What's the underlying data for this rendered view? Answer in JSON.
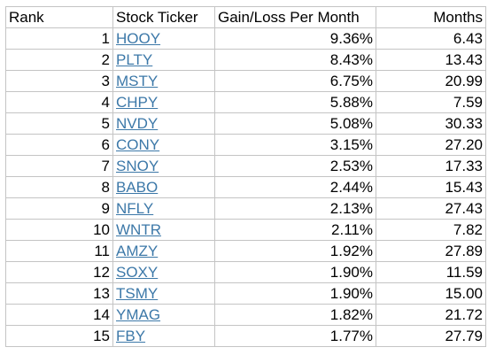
{
  "columns": {
    "rank": "Rank",
    "ticker": "Stock Ticker",
    "gain": "Gain/Loss Per Month",
    "months": "Months"
  },
  "rows": [
    {
      "rank": "1",
      "ticker": "HOOY",
      "gain": "9.36%",
      "months": "6.43"
    },
    {
      "rank": "2",
      "ticker": "PLTY",
      "gain": "8.43%",
      "months": "13.43"
    },
    {
      "rank": "3",
      "ticker": "MSTY",
      "gain": "6.75%",
      "months": "20.99"
    },
    {
      "rank": "4",
      "ticker": "CHPY",
      "gain": "5.88%",
      "months": "7.59"
    },
    {
      "rank": "5",
      "ticker": "NVDY",
      "gain": "5.08%",
      "months": "30.33"
    },
    {
      "rank": "6",
      "ticker": "CONY",
      "gain": "3.15%",
      "months": "27.20"
    },
    {
      "rank": "7",
      "ticker": "SNOY",
      "gain": "2.53%",
      "months": "17.33"
    },
    {
      "rank": "8",
      "ticker": "BABO",
      "gain": "2.44%",
      "months": "15.43"
    },
    {
      "rank": "9",
      "ticker": "NFLY",
      "gain": "2.13%",
      "months": "27.43"
    },
    {
      "rank": "10",
      "ticker": "WNTR",
      "gain": "2.11%",
      "months": "7.82"
    },
    {
      "rank": "11",
      "ticker": "AMZY",
      "gain": "1.92%",
      "months": "27.89"
    },
    {
      "rank": "12",
      "ticker": "SOXY",
      "gain": "1.90%",
      "months": "11.59"
    },
    {
      "rank": "13",
      "ticker": "TSMY",
      "gain": "1.90%",
      "months": "15.00"
    },
    {
      "rank": "14",
      "ticker": "YMAG",
      "gain": "1.82%",
      "months": "21.72"
    },
    {
      "rank": "15",
      "ticker": "FBY",
      "gain": "1.77%",
      "months": "27.79"
    }
  ],
  "colors": {
    "link": "#3c78a8",
    "gridline": "#c4c4c4"
  }
}
